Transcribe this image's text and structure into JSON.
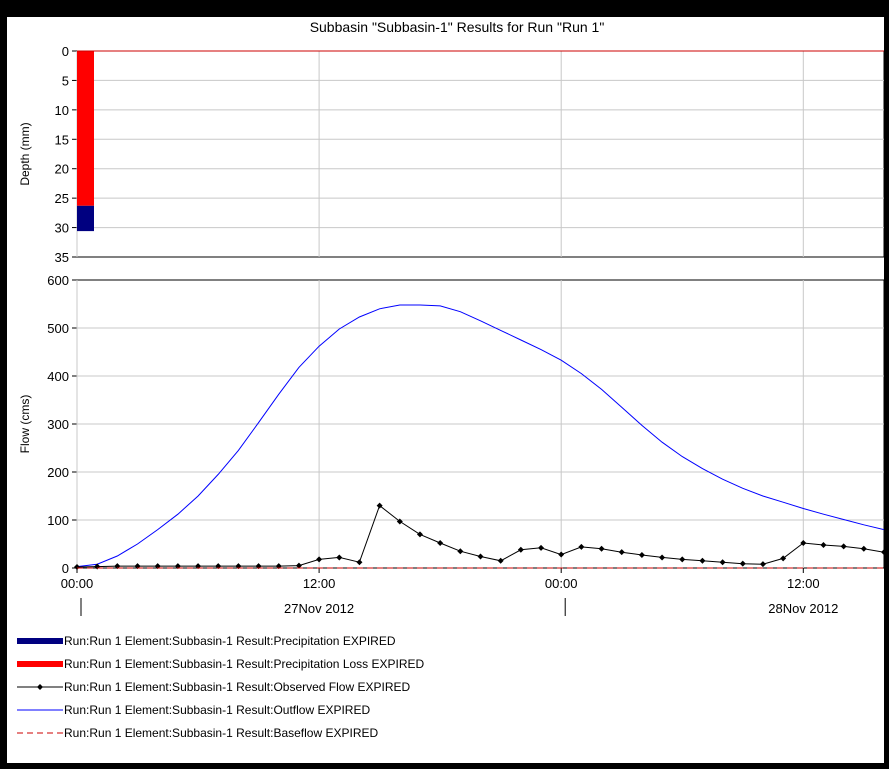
{
  "chart_data": [
    {
      "type": "bar",
      "title": "Subbasin \"Subbasin-1\" Results for Run \"Run 1\"",
      "ylabel": "Depth (mm)",
      "ylim": [
        0,
        35
      ],
      "y_inverted": true,
      "y_ticks": [
        "0",
        "5",
        "10",
        "15",
        "20",
        "25",
        "30",
        "35"
      ],
      "grid": true,
      "bars": [
        {
          "series": "Run:Run 1 Element:Subbasin-1 Result:Precipitation Loss EXPIRED",
          "x": "27Nov 2012 00:00",
          "from": 0,
          "to": 26.3,
          "color": "#ff0000"
        },
        {
          "series": "Run:Run 1 Element:Subbasin-1 Result:Precipitation EXPIRED",
          "x": "27Nov 2012 00:00",
          "from": 26.3,
          "to": 30.6,
          "color": "#000080"
        }
      ]
    },
    {
      "type": "line",
      "ylabel": "Flow (cms)",
      "ylim": [
        0,
        600
      ],
      "y_ticks": [
        "0",
        "100",
        "200",
        "300",
        "400",
        "500",
        "600"
      ],
      "x_range_hours": [
        0,
        40
      ],
      "x_ticks": [
        {
          "hour": 0,
          "label": "00:00"
        },
        {
          "hour": 12,
          "label": "12:00"
        },
        {
          "hour": 24,
          "label": "00:00"
        },
        {
          "hour": 36,
          "label": "12:00"
        }
      ],
      "date_labels": [
        {
          "hour": 12,
          "label": "27Nov 2012"
        },
        {
          "hour": 36,
          "label": "28Nov 2012"
        }
      ],
      "grid": true,
      "series": [
        {
          "name": "Run:Run 1 Element:Subbasin-1 Result:Outflow EXPIRED",
          "color": "#0000ff",
          "x": [
            0,
            1,
            2,
            3,
            4,
            5,
            6,
            7,
            8,
            9,
            10,
            11,
            12,
            13,
            14,
            15,
            16,
            17,
            18,
            19,
            20,
            21,
            22,
            23,
            24,
            25,
            26,
            27,
            28,
            29,
            30,
            31,
            32,
            33,
            34,
            35,
            36,
            37,
            38,
            39,
            40
          ],
          "y": [
            3,
            8,
            25,
            50,
            80,
            112,
            150,
            195,
            245,
            303,
            362,
            418,
            462,
            498,
            523,
            540,
            548,
            548,
            546,
            534,
            515,
            495,
            475,
            455,
            433,
            405,
            372,
            335,
            297,
            262,
            232,
            207,
            185,
            166,
            150,
            137,
            124,
            112,
            101,
            90,
            80
          ]
        },
        {
          "name": "Run:Run 1 Element:Subbasin-1 Result:Observed Flow EXPIRED",
          "color": "#000000",
          "marker": "diamond",
          "x": [
            0,
            1,
            2,
            3,
            4,
            5,
            6,
            7,
            8,
            9,
            10,
            11,
            12,
            13,
            14,
            15,
            16,
            17,
            18,
            19,
            20,
            21,
            22,
            23,
            24,
            25,
            26,
            27,
            28,
            29,
            30,
            31,
            32,
            33,
            34,
            35,
            36,
            37,
            38,
            39,
            40
          ],
          "y": [
            2,
            3,
            4,
            4,
            4,
            4,
            4,
            4,
            4,
            4,
            4,
            5,
            18,
            22,
            12,
            130,
            97,
            70,
            52,
            35,
            24,
            15,
            38,
            42,
            28,
            44,
            40,
            33,
            27,
            22,
            18,
            15,
            12,
            9,
            8,
            20,
            52,
            48,
            45,
            40,
            33
          ]
        },
        {
          "name": "Run:Run 1 Element:Subbasin-1 Result:Baseflow EXPIRED",
          "color": "#cc0000",
          "dashed": true,
          "x": [
            0,
            40
          ],
          "y": [
            0,
            0
          ]
        }
      ]
    }
  ],
  "legend": [
    {
      "label": "Run:Run 1 Element:Subbasin-1 Result:Precipitation EXPIRED",
      "style": "thickbar",
      "color": "#000080"
    },
    {
      "label": "Run:Run 1 Element:Subbasin-1 Result:Precipitation Loss EXPIRED",
      "style": "thickbar",
      "color": "#ff0000"
    },
    {
      "label": "Run:Run 1 Element:Subbasin-1 Result:Observed Flow EXPIRED",
      "style": "marker",
      "color": "#000000"
    },
    {
      "label": "Run:Run 1 Element:Subbasin-1 Result:Outflow EXPIRED",
      "style": "line",
      "color": "#0000ff"
    },
    {
      "label": "Run:Run 1 Element:Subbasin-1 Result:Baseflow EXPIRED",
      "style": "dashed",
      "color": "#cc0000"
    }
  ]
}
